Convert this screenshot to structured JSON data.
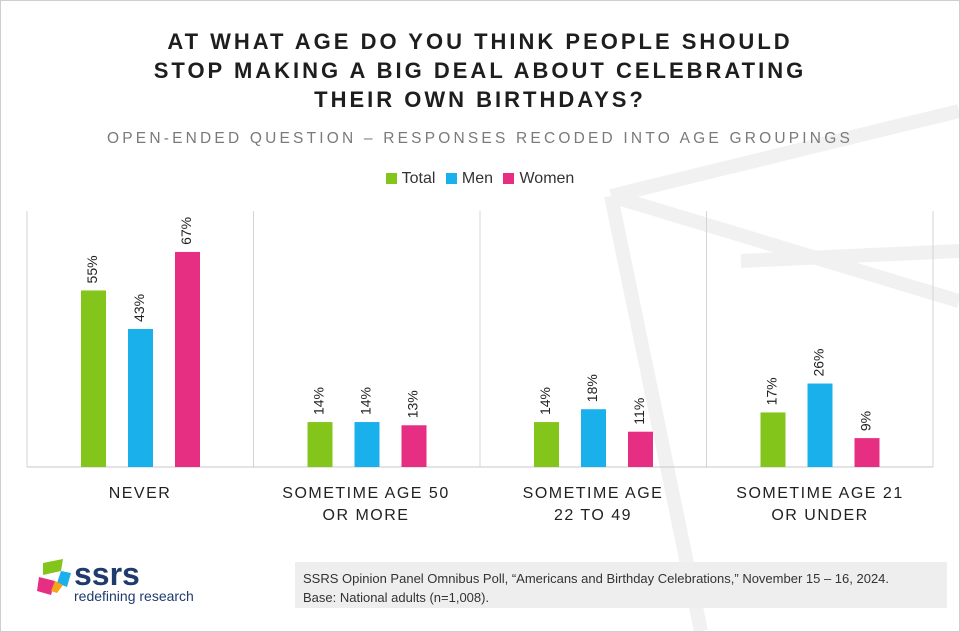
{
  "title": {
    "line1": "AT WHAT AGE DO YOU THINK PEOPLE SHOULD",
    "line2": "STOP MAKING A BIG DEAL ABOUT CELEBRATING",
    "line3": "THEIR OWN BIRTHDAYS?"
  },
  "subtitle": "OPEN-ENDED QUESTION – RESPONSES RECODED INTO AGE GROUPINGS",
  "colors": {
    "Total": "#84c51b",
    "Men": "#19b0ec",
    "Women": "#e62e82"
  },
  "chart_data": {
    "type": "bar",
    "title": "AT WHAT AGE DO YOU THINK PEOPLE SHOULD STOP MAKING A BIG DEAL ABOUT CELEBRATING THEIR OWN BIRTHDAYS?",
    "categories": [
      "NEVER",
      "SOMETIME AGE 50 OR MORE",
      "SOMETIME AGE 22 TO 49",
      "SOMETIME AGE 21 OR UNDER"
    ],
    "category_lines": [
      [
        "NEVER"
      ],
      [
        "SOMETIME AGE 50",
        "OR MORE"
      ],
      [
        "SOMETIME AGE",
        "22 TO 49"
      ],
      [
        "SOMETIME AGE 21",
        "OR UNDER"
      ]
    ],
    "series": [
      {
        "name": "Total",
        "values": [
          55,
          14,
          14,
          17
        ]
      },
      {
        "name": "Men",
        "values": [
          43,
          14,
          18,
          26
        ]
      },
      {
        "name": "Women",
        "values": [
          67,
          13,
          11,
          9
        ]
      }
    ],
    "value_suffix": "%",
    "ylim": [
      0,
      80
    ],
    "xlabel": "",
    "ylabel": "",
    "grid": false,
    "legend": "top-center"
  },
  "logo": {
    "name": "ssrs",
    "tagline": "redefining research"
  },
  "source": {
    "line1": "SSRS Opinion Panel Omnibus Poll, “Americans and Birthday Celebrations,” November 15 – 16, 2024.",
    "line2": "Base: National adults (n=1,008)."
  }
}
